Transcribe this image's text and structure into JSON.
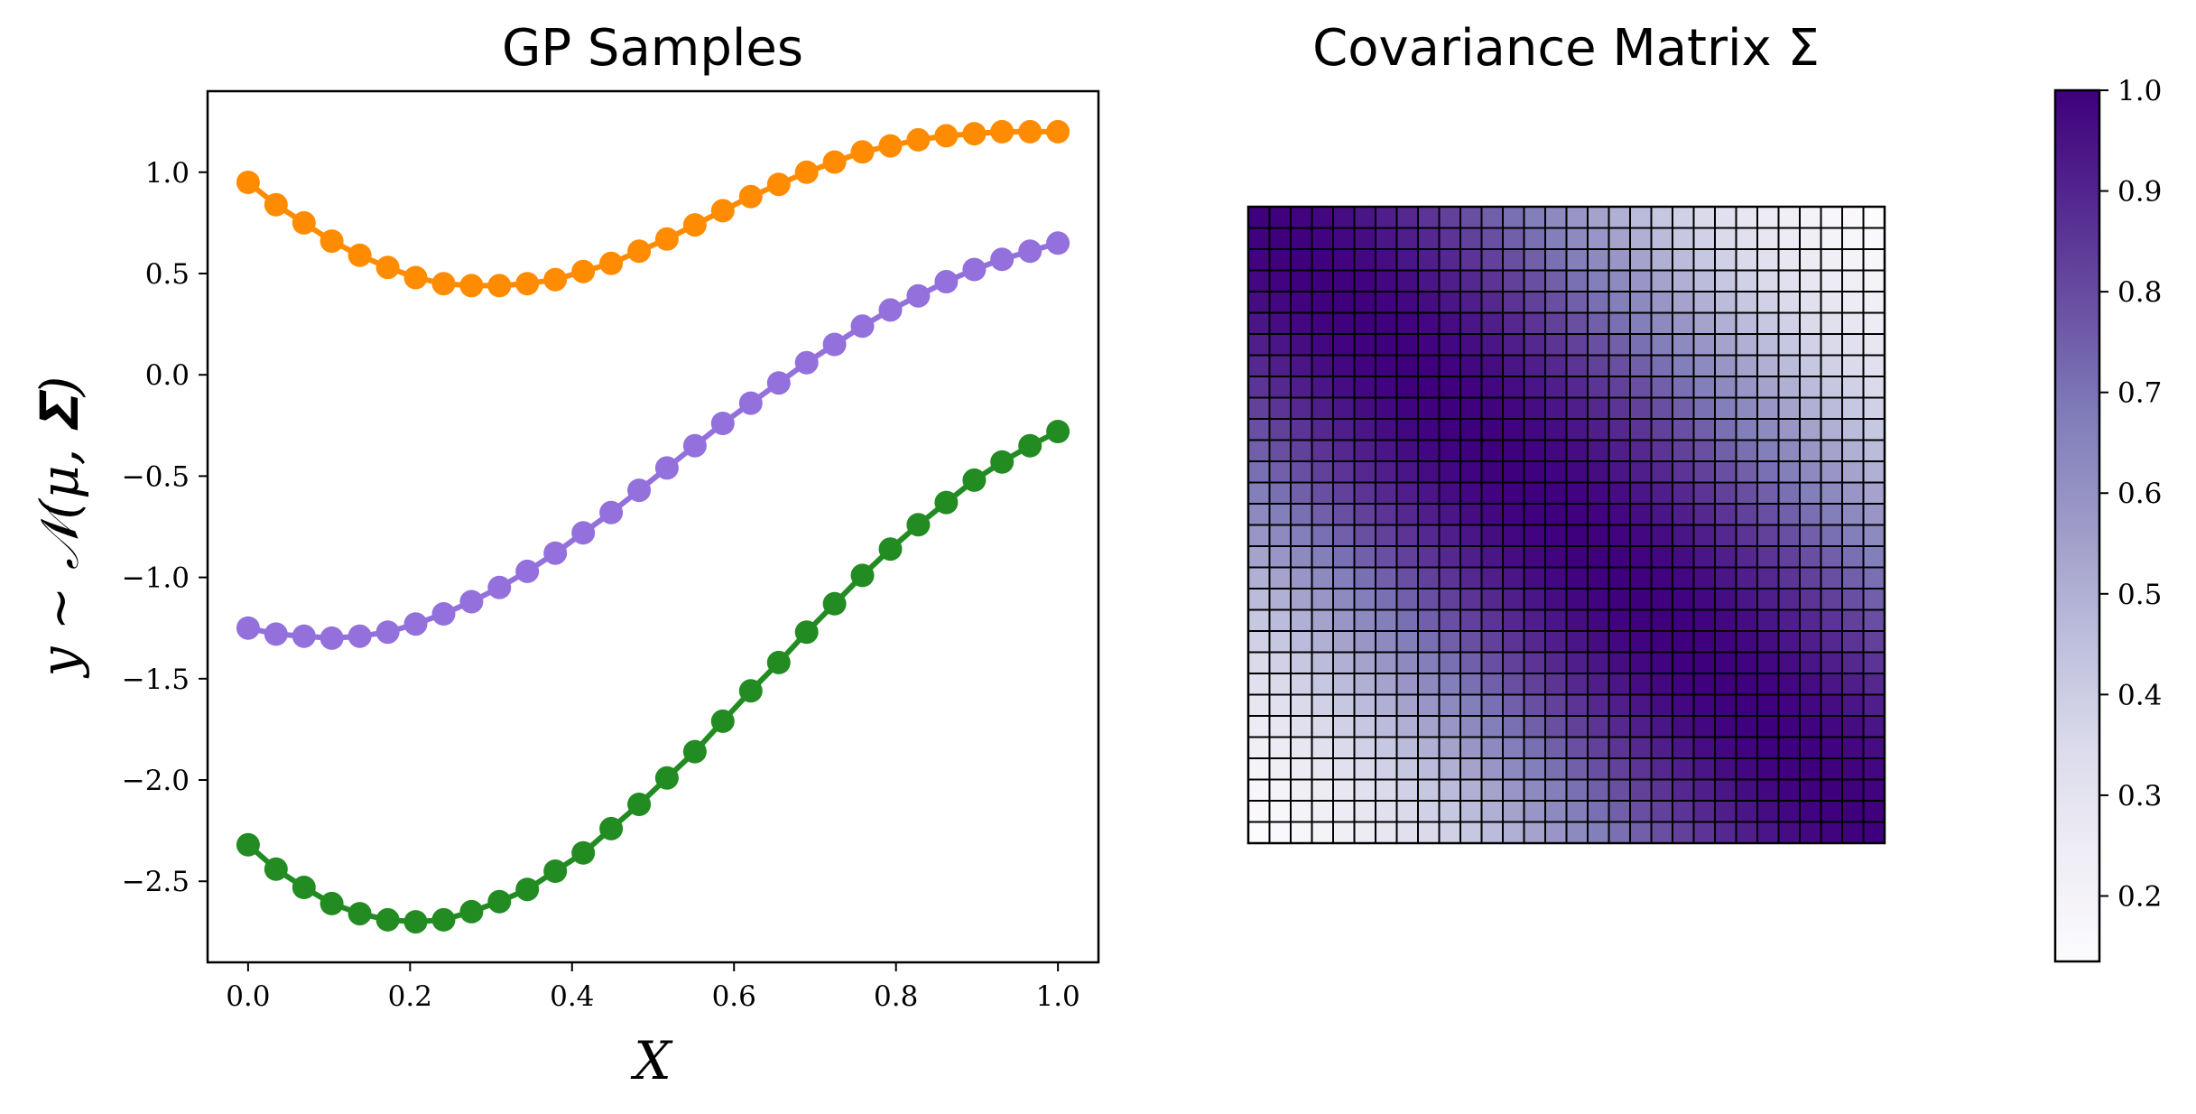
{
  "chart_data": [
    {
      "type": "line",
      "title": "GP Samples",
      "xlabel": "X",
      "ylabel": "y ~ 𝒩(μ, 𝚺)",
      "xlim": [
        -0.05,
        1.05
      ],
      "ylim": [
        -2.9,
        1.4
      ],
      "xticks": [
        0.0,
        0.2,
        0.4,
        0.6,
        0.8,
        1.0
      ],
      "xtick_labels": [
        "0.0",
        "0.2",
        "0.4",
        "0.6",
        "0.8",
        "1.0"
      ],
      "yticks": [
        1.0,
        0.5,
        0.0,
        -0.5,
        -1.0,
        -1.5,
        -2.0,
        -2.5
      ],
      "ytick_labels": [
        "1.0",
        "0.5",
        "0.0",
        "−0.5",
        "−1.0",
        "−1.5",
        "−2.0",
        "−2.5"
      ],
      "grid": false,
      "n_points": 30,
      "x": [
        0.0,
        0.0345,
        0.069,
        0.1034,
        0.1379,
        0.1724,
        0.2069,
        0.2414,
        0.2759,
        0.3103,
        0.3448,
        0.3793,
        0.4138,
        0.4483,
        0.4828,
        0.5172,
        0.5517,
        0.5862,
        0.6207,
        0.6552,
        0.6897,
        0.7241,
        0.7586,
        0.7931,
        0.8276,
        0.8621,
        0.8966,
        0.931,
        0.9655,
        1.0
      ],
      "series": [
        {
          "color": "#ff8c00",
          "values": [
            0.95,
            0.84,
            0.75,
            0.66,
            0.59,
            0.53,
            0.48,
            0.45,
            0.44,
            0.44,
            0.45,
            0.47,
            0.51,
            0.55,
            0.61,
            0.67,
            0.74,
            0.81,
            0.88,
            0.94,
            1.0,
            1.05,
            1.1,
            1.13,
            1.16,
            1.18,
            1.19,
            1.2,
            1.2,
            1.2
          ]
        },
        {
          "color": "#9370db",
          "values": [
            -1.25,
            -1.28,
            -1.29,
            -1.3,
            -1.29,
            -1.27,
            -1.23,
            -1.18,
            -1.12,
            -1.05,
            -0.97,
            -0.88,
            -0.78,
            -0.68,
            -0.57,
            -0.46,
            -0.35,
            -0.24,
            -0.14,
            -0.04,
            0.06,
            0.15,
            0.24,
            0.32,
            0.39,
            0.46,
            0.52,
            0.57,
            0.61,
            0.65
          ]
        },
        {
          "color": "#228b22",
          "values": [
            -2.32,
            -2.44,
            -2.53,
            -2.61,
            -2.66,
            -2.69,
            -2.7,
            -2.69,
            -2.65,
            -2.6,
            -2.54,
            -2.45,
            -2.36,
            -2.24,
            -2.12,
            -1.99,
            -1.86,
            -1.71,
            -1.56,
            -1.42,
            -1.27,
            -1.13,
            -0.99,
            -0.86,
            -0.74,
            -0.63,
            -0.52,
            -0.43,
            -0.35,
            -0.28
          ]
        }
      ]
    },
    {
      "type": "heatmap",
      "title": "Covariance Matrix Σ",
      "size": 30,
      "kernel": "squared-exponential",
      "length_scale": 0.5,
      "colormap": "Purples",
      "colormap_stops": [
        "#fcfbfd",
        "#efedf5",
        "#dadaeb",
        "#bcbddc",
        "#9e9ac8",
        "#807dba",
        "#6a51a3",
        "#54278f",
        "#3f007d"
      ],
      "vmin": 0.135,
      "vmax": 1.0,
      "cell_edge_color": "#000000",
      "colorbar": {
        "ticks": [
          1.0,
          0.9,
          0.8,
          0.7,
          0.6,
          0.5,
          0.4,
          0.3,
          0.2
        ],
        "tick_labels": [
          "1.0",
          "0.9",
          "0.8",
          "0.7",
          "0.6",
          "0.5",
          "0.4",
          "0.3",
          "0.2"
        ],
        "placement": "right"
      }
    }
  ]
}
